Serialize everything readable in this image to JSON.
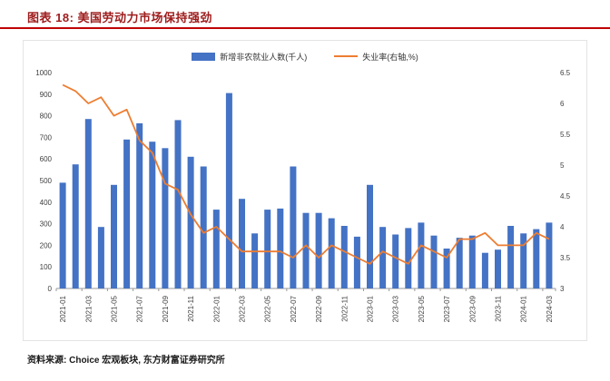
{
  "header": {
    "title": "图表 18: 美国劳动力市场保持强劲"
  },
  "footer": {
    "source": "资料来源: Choice 宏观板块, 东方财富证券研究所"
  },
  "theme": {
    "accent_red": "#C00000",
    "bar_color": "#4472C4",
    "line_color": "#ED7D31"
  },
  "chart_data": {
    "type": "bar",
    "subtype": "combo-bar-line",
    "title": "美国劳动力市场保持强劲",
    "legend_position": "top",
    "grid": false,
    "x_tick_step": 2,
    "categories": [
      "2021-01",
      "2021-02",
      "2021-03",
      "2021-04",
      "2021-05",
      "2021-06",
      "2021-07",
      "2021-08",
      "2021-09",
      "2021-10",
      "2021-11",
      "2021-12",
      "2022-01",
      "2022-02",
      "2022-03",
      "2022-04",
      "2022-05",
      "2022-06",
      "2022-07",
      "2022-08",
      "2022-09",
      "2022-10",
      "2022-11",
      "2022-12",
      "2023-01",
      "2023-02",
      "2023-03",
      "2023-04",
      "2023-05",
      "2023-06",
      "2023-07",
      "2023-08",
      "2023-09",
      "2023-10",
      "2023-11",
      "2023-12",
      "2024-01",
      "2024-02",
      "2024-03"
    ],
    "series": [
      {
        "name": "新增非农就业人数(千人)",
        "type": "bar",
        "axis": "left",
        "color": "#4472C4",
        "values": [
          490,
          575,
          785,
          285,
          480,
          690,
          765,
          680,
          650,
          780,
          610,
          565,
          365,
          905,
          415,
          255,
          365,
          370,
          565,
          350,
          350,
          325,
          290,
          240,
          480,
          285,
          250,
          280,
          305,
          245,
          185,
          235,
          245,
          165,
          180,
          290,
          255,
          275,
          305
        ]
      },
      {
        "name": "失业率(右轴,%)",
        "type": "line",
        "axis": "right",
        "color": "#ED7D31",
        "values": [
          6.3,
          6.2,
          6.0,
          6.1,
          5.8,
          5.9,
          5.4,
          5.2,
          4.7,
          4.6,
          4.2,
          3.9,
          4.0,
          3.8,
          3.6,
          3.6,
          3.6,
          3.6,
          3.5,
          3.7,
          3.5,
          3.7,
          3.6,
          3.5,
          3.4,
          3.6,
          3.5,
          3.4,
          3.7,
          3.6,
          3.5,
          3.8,
          3.8,
          3.9,
          3.7,
          3.7,
          3.7,
          3.9,
          3.8
        ]
      }
    ],
    "left_axis": {
      "min": 0,
      "max": 1000,
      "step": 100,
      "ticks": [
        0,
        100,
        200,
        300,
        400,
        500,
        600,
        700,
        800,
        900,
        1000
      ]
    },
    "right_axis": {
      "min": 3,
      "max": 6.5,
      "step": 0.5,
      "ticks": [
        3,
        3.5,
        4,
        4.5,
        5,
        5.5,
        6,
        6.5
      ]
    }
  }
}
